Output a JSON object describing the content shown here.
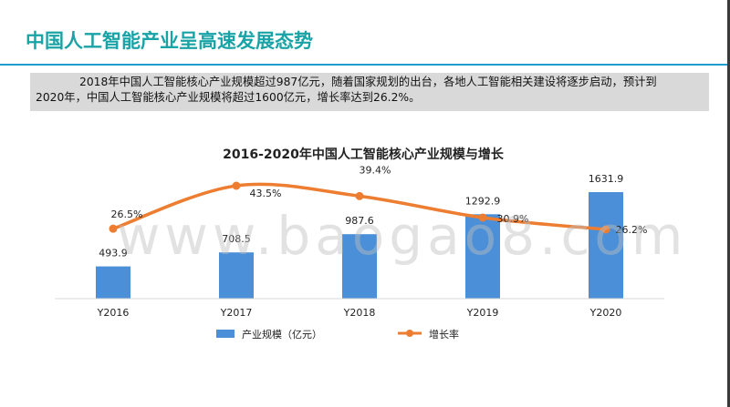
{
  "page": {
    "title": "中国人工智能产业呈高速发展态势",
    "intro_line1": "2018年中国人工智能核心产业规模超过987亿元，随着国家规划的出台，各地人工智能相关建设将逐步启动，预计到",
    "intro_line2": "2020年，中国人工智能核心产业规模将超过1600亿元，增长率达到26.2%。",
    "watermark": "www.baogao8.com"
  },
  "colors": {
    "title": "#1aa3a6",
    "rule": "#1f9dcf",
    "bar": "#4a8fd8",
    "line": "#ed7d31"
  },
  "chart_data": {
    "type": "bar",
    "title": "2016-2020年中国人工智能核心产业规模与增长",
    "categories": [
      "Y2016",
      "Y2017",
      "Y2018",
      "Y2019",
      "Y2020"
    ],
    "series": [
      {
        "name": "产业规模（亿元）",
        "type": "bar",
        "axis": "left",
        "values": [
          493.9,
          708.5,
          987.6,
          1292.9,
          1631.9
        ],
        "labels": [
          "493.9",
          "708.5",
          "987.6",
          "1292.9",
          "1631.9"
        ]
      },
      {
        "name": "增长率",
        "type": "line",
        "smooth": true,
        "markers": true,
        "axis": "right",
        "values": [
          26.5,
          43.5,
          39.4,
          30.9,
          26.2
        ],
        "labels": [
          "26.5%",
          "43.5%",
          "39.4%",
          "30.9%",
          "26.2%"
        ]
      }
    ],
    "ylim": [
      0,
      1800
    ],
    "y2lim": [
      0,
      50
    ],
    "axes_visible": false,
    "grid": false,
    "legend": "bottom"
  }
}
